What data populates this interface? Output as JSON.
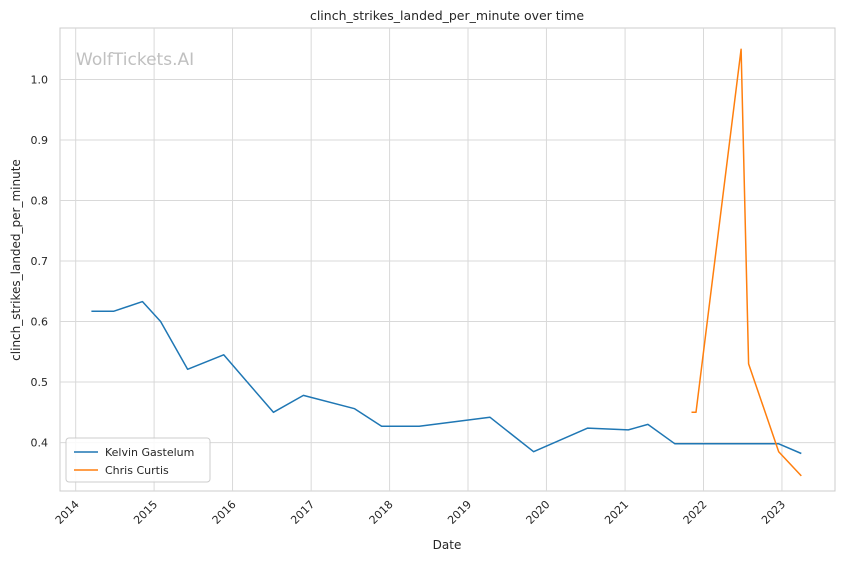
{
  "chart_data": {
    "type": "line",
    "title": "clinch_strikes_landed_per_minute over time",
    "xlabel": "Date",
    "ylabel": "clinch_strikes_landed_per_minute",
    "watermark": "WolfTickets.AI",
    "x_tick_labels": [
      "2014",
      "2015",
      "2016",
      "2017",
      "2018",
      "2019",
      "2020",
      "2021",
      "2022",
      "2023"
    ],
    "y_tick_labels": [
      "0.4",
      "0.5",
      "0.6",
      "0.7",
      "0.8",
      "0.9",
      "1.0"
    ],
    "xlim": [
      "2013-10-20",
      "2023-09-05"
    ],
    "ylim": [
      0.32,
      1.085
    ],
    "grid": true,
    "legend_position": "lower-left",
    "series": [
      {
        "name": "Kelvin Gastelum",
        "color": "#1f77b4",
        "points": [
          [
            "2014-03-15",
            0.617
          ],
          [
            "2014-06-28",
            0.617
          ],
          [
            "2014-11-08",
            0.633
          ],
          [
            "2015-01-31",
            0.6
          ],
          [
            "2015-06-06",
            0.521
          ],
          [
            "2015-11-21",
            0.545
          ],
          [
            "2016-07-09",
            0.45
          ],
          [
            "2016-11-26",
            0.478
          ],
          [
            "2017-07-22",
            0.456
          ],
          [
            "2017-11-25",
            0.427
          ],
          [
            "2018-05-19",
            0.427
          ],
          [
            "2019-04-13",
            0.442
          ],
          [
            "2019-11-02",
            0.385
          ],
          [
            "2020-07-11",
            0.424
          ],
          [
            "2021-01-16",
            0.421
          ],
          [
            "2021-04-17",
            0.43
          ],
          [
            "2021-08-21",
            0.398
          ],
          [
            "2022-12-17",
            0.398
          ],
          [
            "2023-04-01",
            0.382
          ]
        ]
      },
      {
        "name": "Chris Curtis",
        "color": "#ff7f0e",
        "points": [
          [
            "2021-11-06",
            0.45
          ],
          [
            "2021-11-27",
            0.45
          ],
          [
            "2022-06-25",
            1.05
          ],
          [
            "2022-07-30",
            0.53
          ],
          [
            "2022-12-17",
            0.385
          ],
          [
            "2023-04-01",
            0.345
          ]
        ]
      }
    ]
  }
}
